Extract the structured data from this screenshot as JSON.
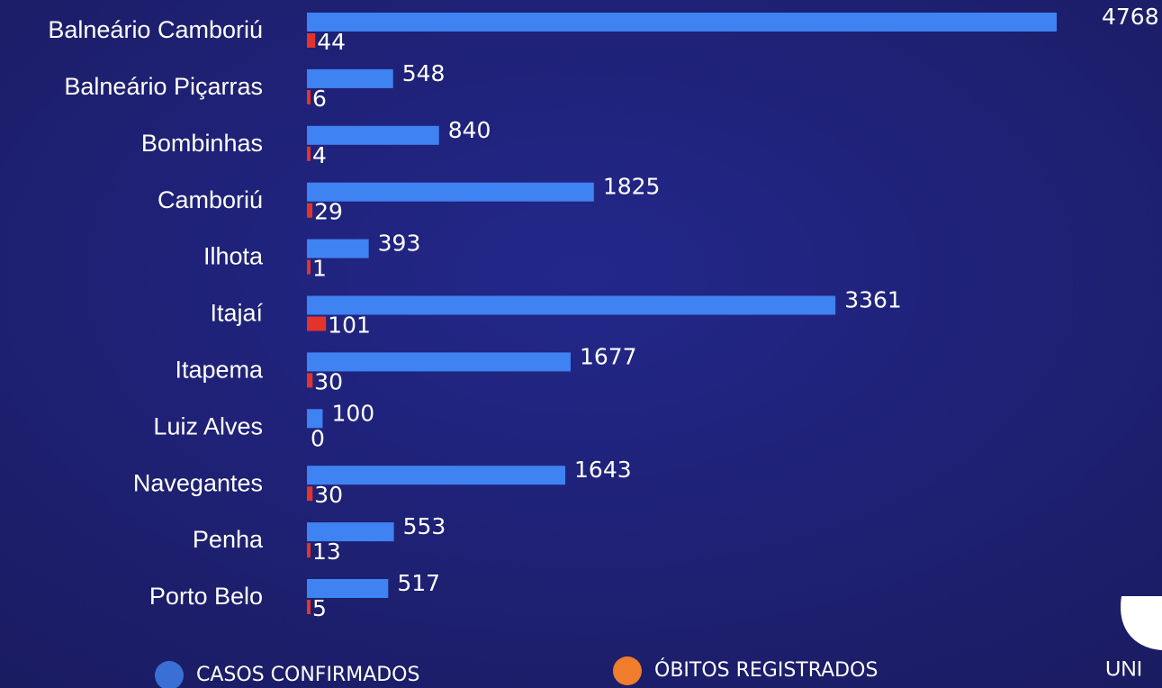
{
  "chart_data": {
    "type": "bar",
    "orientation": "horizontal",
    "categories": [
      "Balneário Camboriú",
      "Balneário Piçarras",
      "Bombinhas",
      "Camboriú",
      "Ilhota",
      "Itajaí",
      "Itapema",
      "Luiz Alves",
      "Navegantes",
      "Penha",
      "Porto Belo"
    ],
    "series": [
      {
        "name": "CASOS CONFIRMADOS",
        "color": "#3f82f2",
        "legend_color": "#3a6fd6",
        "values": [
          4768,
          548,
          840,
          1825,
          393,
          3361,
          1677,
          100,
          1643,
          553,
          517
        ]
      },
      {
        "name": "ÓBITOS REGISTRADOS",
        "color": "#e3342b",
        "legend_color": "#f07d2c",
        "values": [
          44,
          6,
          4,
          29,
          1,
          101,
          30,
          0,
          30,
          13,
          5
        ]
      }
    ],
    "legend": "bottom",
    "logo_text": "UNI"
  }
}
